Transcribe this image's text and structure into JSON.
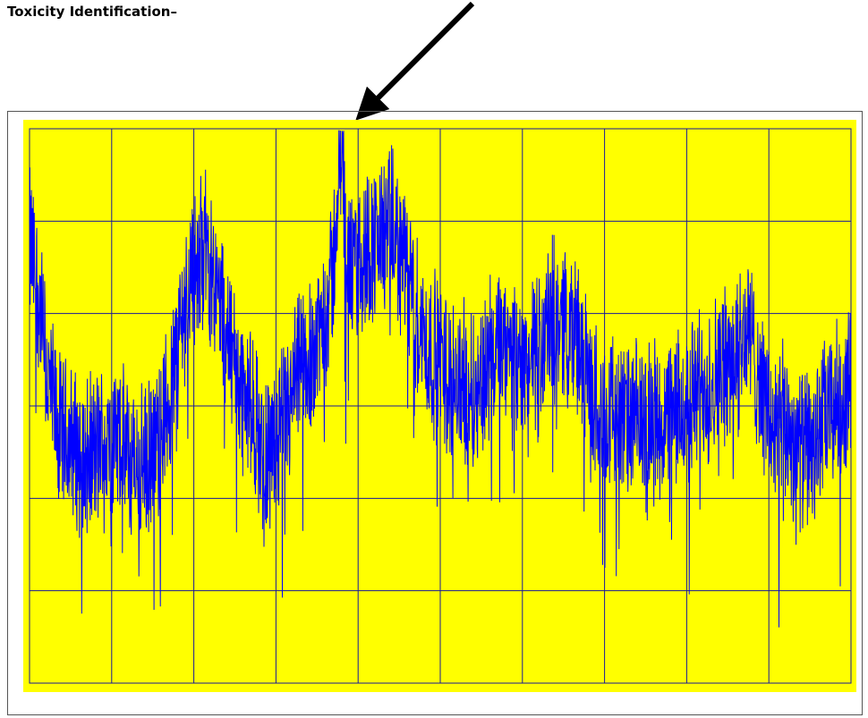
{
  "title": "Toxicity Identification–",
  "colors": {
    "plot_background": "#ffff00",
    "grid": "#1a1a99",
    "trace": "#0000ff",
    "black_arrow": "#000000",
    "red_arrow": "#ff0000"
  },
  "chart_data": {
    "type": "line",
    "title": "",
    "xlabel": "",
    "ylabel": "",
    "grid": true,
    "xlim": [
      0,
      10
    ],
    "ylim": [
      0,
      6
    ],
    "series": [
      {
        "x": [
          0,
          0.1,
          0.2,
          0.35,
          0.5,
          0.7,
          0.9,
          1.1,
          1.3,
          1.5,
          1.7,
          1.85,
          1.95,
          2.0,
          2.05,
          2.1,
          2.25,
          2.4,
          2.55,
          2.7,
          2.85,
          3.0,
          3.15,
          3.3,
          3.45,
          3.6,
          3.7,
          3.75,
          3.8,
          3.85,
          3.9,
          4.0,
          4.1,
          4.25,
          4.4,
          4.55,
          4.7,
          4.85,
          5.0,
          5.15,
          5.3,
          5.45,
          5.6,
          5.75,
          5.9,
          6.05,
          6.2,
          6.35,
          6.5,
          6.65,
          6.8,
          6.95,
          7.1,
          7.25,
          7.4,
          7.55,
          7.7,
          7.85,
          8.0,
          8.15,
          8.3,
          8.45,
          8.6,
          8.75,
          8.9,
          9.05,
          9.2,
          9.35,
          9.5,
          9.65,
          9.8,
          9.9,
          10.0
        ],
        "y": [
          4.75,
          4.3,
          3.4,
          2.7,
          2.6,
          2.4,
          2.6,
          2.6,
          2.3,
          2.4,
          3.1,
          3.9,
          4.4,
          4.6,
          4.3,
          4.8,
          4.4,
          3.8,
          3.3,
          2.9,
          2.5,
          2.6,
          2.9,
          3.4,
          3.6,
          4.0,
          4.5,
          5.3,
          5.95,
          4.8,
          4.4,
          4.5,
          4.7,
          4.8,
          4.9,
          4.6,
          4.0,
          3.6,
          3.5,
          3.3,
          3.2,
          3.2,
          3.5,
          3.6,
          3.4,
          3.4,
          3.6,
          3.9,
          4.0,
          3.8,
          3.2,
          2.9,
          3.0,
          2.8,
          2.8,
          2.9,
          2.8,
          2.9,
          3.0,
          3.2,
          3.3,
          3.4,
          3.6,
          3.8,
          3.3,
          2.7,
          2.8,
          2.6,
          2.5,
          2.8,
          3.0,
          3.1,
          3.2
        ]
      }
    ]
  }
}
